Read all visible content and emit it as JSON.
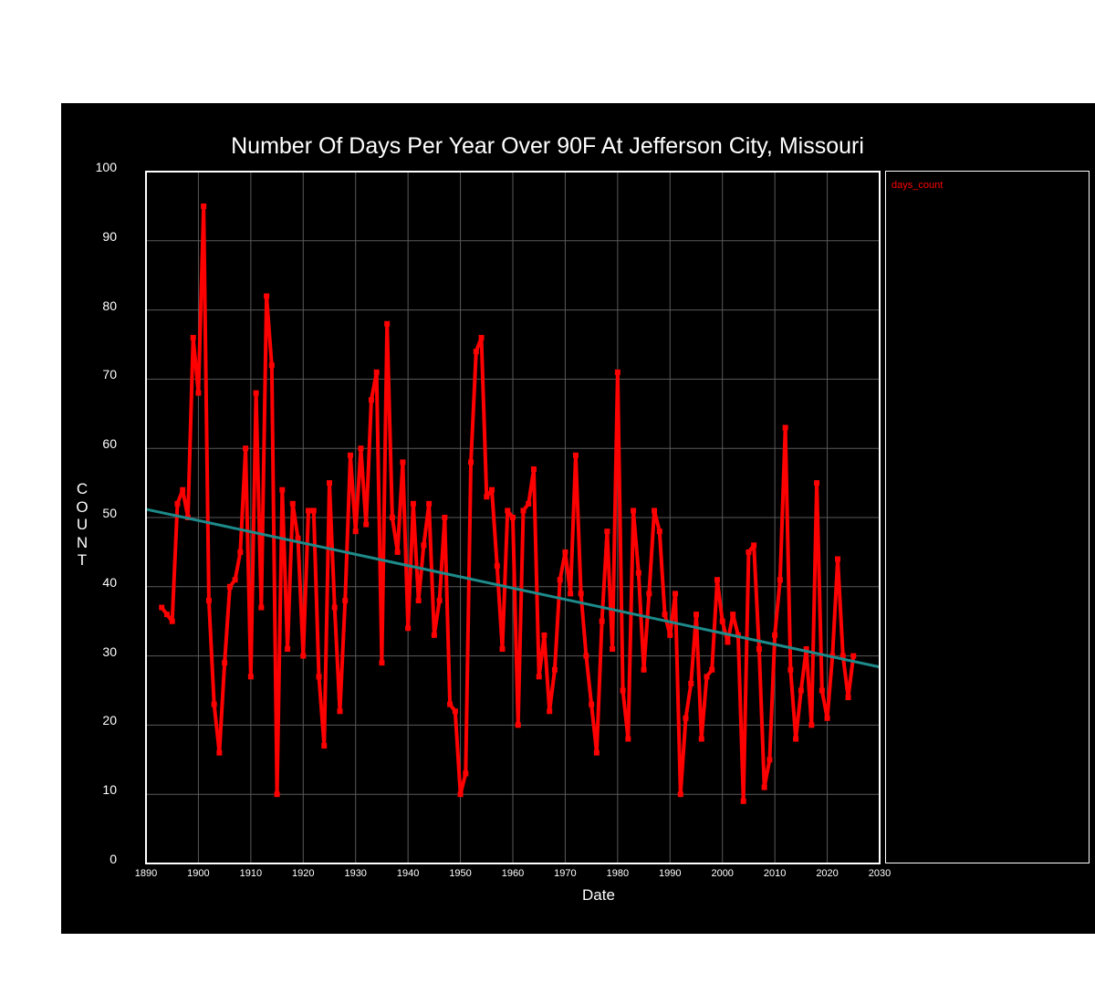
{
  "chart_data": {
    "type": "line",
    "title": "Number Of Days Per Year Over 90F At Jefferson City, Missouri",
    "xlabel": "Date",
    "ylabel": "COUNT",
    "xlim": [
      1890,
      2030
    ],
    "ylim": [
      0,
      100
    ],
    "xticks": [
      1890,
      1900,
      1910,
      1920,
      1930,
      1940,
      1950,
      1960,
      1970,
      1980,
      1990,
      2000,
      2010,
      2020,
      2030
    ],
    "yticks": [
      0,
      10,
      20,
      30,
      40,
      50,
      60,
      70,
      80,
      90,
      100
    ],
    "grid": true,
    "legend_position": "right",
    "series": [
      {
        "name": "days_count",
        "color": "#ff0000",
        "x": [
          1893,
          1894,
          1895,
          1896,
          1897,
          1898,
          1899,
          1900,
          1901,
          1902,
          1903,
          1904,
          1905,
          1906,
          1907,
          1908,
          1909,
          1910,
          1911,
          1912,
          1913,
          1914,
          1915,
          1916,
          1917,
          1918,
          1919,
          1920,
          1921,
          1922,
          1923,
          1924,
          1925,
          1926,
          1927,
          1928,
          1929,
          1930,
          1931,
          1932,
          1933,
          1934,
          1935,
          1936,
          1937,
          1938,
          1939,
          1940,
          1941,
          1942,
          1943,
          1944,
          1945,
          1946,
          1947,
          1948,
          1949,
          1950,
          1951,
          1952,
          1953,
          1954,
          1955,
          1956,
          1957,
          1958,
          1959,
          1960,
          1961,
          1962,
          1963,
          1964,
          1965,
          1966,
          1967,
          1968,
          1969,
          1970,
          1971,
          1972,
          1973,
          1974,
          1975,
          1976,
          1977,
          1978,
          1979,
          1980,
          1981,
          1982,
          1983,
          1984,
          1985,
          1986,
          1987,
          1988,
          1989,
          1990,
          1991,
          1992,
          1993,
          1994,
          1995,
          1996,
          1997,
          1998,
          1999,
          2000,
          2001,
          2002,
          2003,
          2004,
          2005,
          2006,
          2007,
          2008,
          2009,
          2010,
          2011,
          2012,
          2013,
          2014,
          2015,
          2016,
          2017,
          2018,
          2019,
          2020,
          2021,
          2022,
          2023,
          2024,
          2025
        ],
        "values": [
          37,
          36,
          35,
          52,
          54,
          50,
          76,
          68,
          95,
          38,
          23,
          16,
          29,
          40,
          41,
          45,
          60,
          27,
          68,
          37,
          82,
          72,
          10,
          54,
          31,
          52,
          47,
          30,
          51,
          51,
          27,
          17,
          55,
          37,
          22,
          38,
          59,
          48,
          60,
          49,
          67,
          71,
          29,
          78,
          50,
          45,
          58,
          34,
          52,
          38,
          46,
          52,
          33,
          38,
          50,
          23,
          22,
          10,
          13,
          58,
          74,
          76,
          53,
          54,
          43,
          31,
          51,
          50,
          20,
          51,
          52,
          57,
          27,
          33,
          22,
          28,
          41,
          45,
          39,
          59,
          39,
          30,
          23,
          16,
          35,
          48,
          31,
          71,
          25,
          18,
          51,
          42,
          28,
          39,
          51,
          48,
          36,
          33,
          39,
          10,
          21,
          26,
          36,
          18,
          27,
          28,
          41,
          35,
          32,
          36,
          33,
          9,
          45,
          46,
          31,
          11,
          15,
          33,
          41,
          63,
          28,
          18,
          25,
          31,
          20,
          55,
          25,
          21,
          30,
          44,
          30,
          24,
          30
        ]
      },
      {
        "name": "",
        "color": "#1e8a8a",
        "x": [
          1890,
          2030
        ],
        "values": [
          51.2,
          28.4
        ]
      }
    ]
  }
}
